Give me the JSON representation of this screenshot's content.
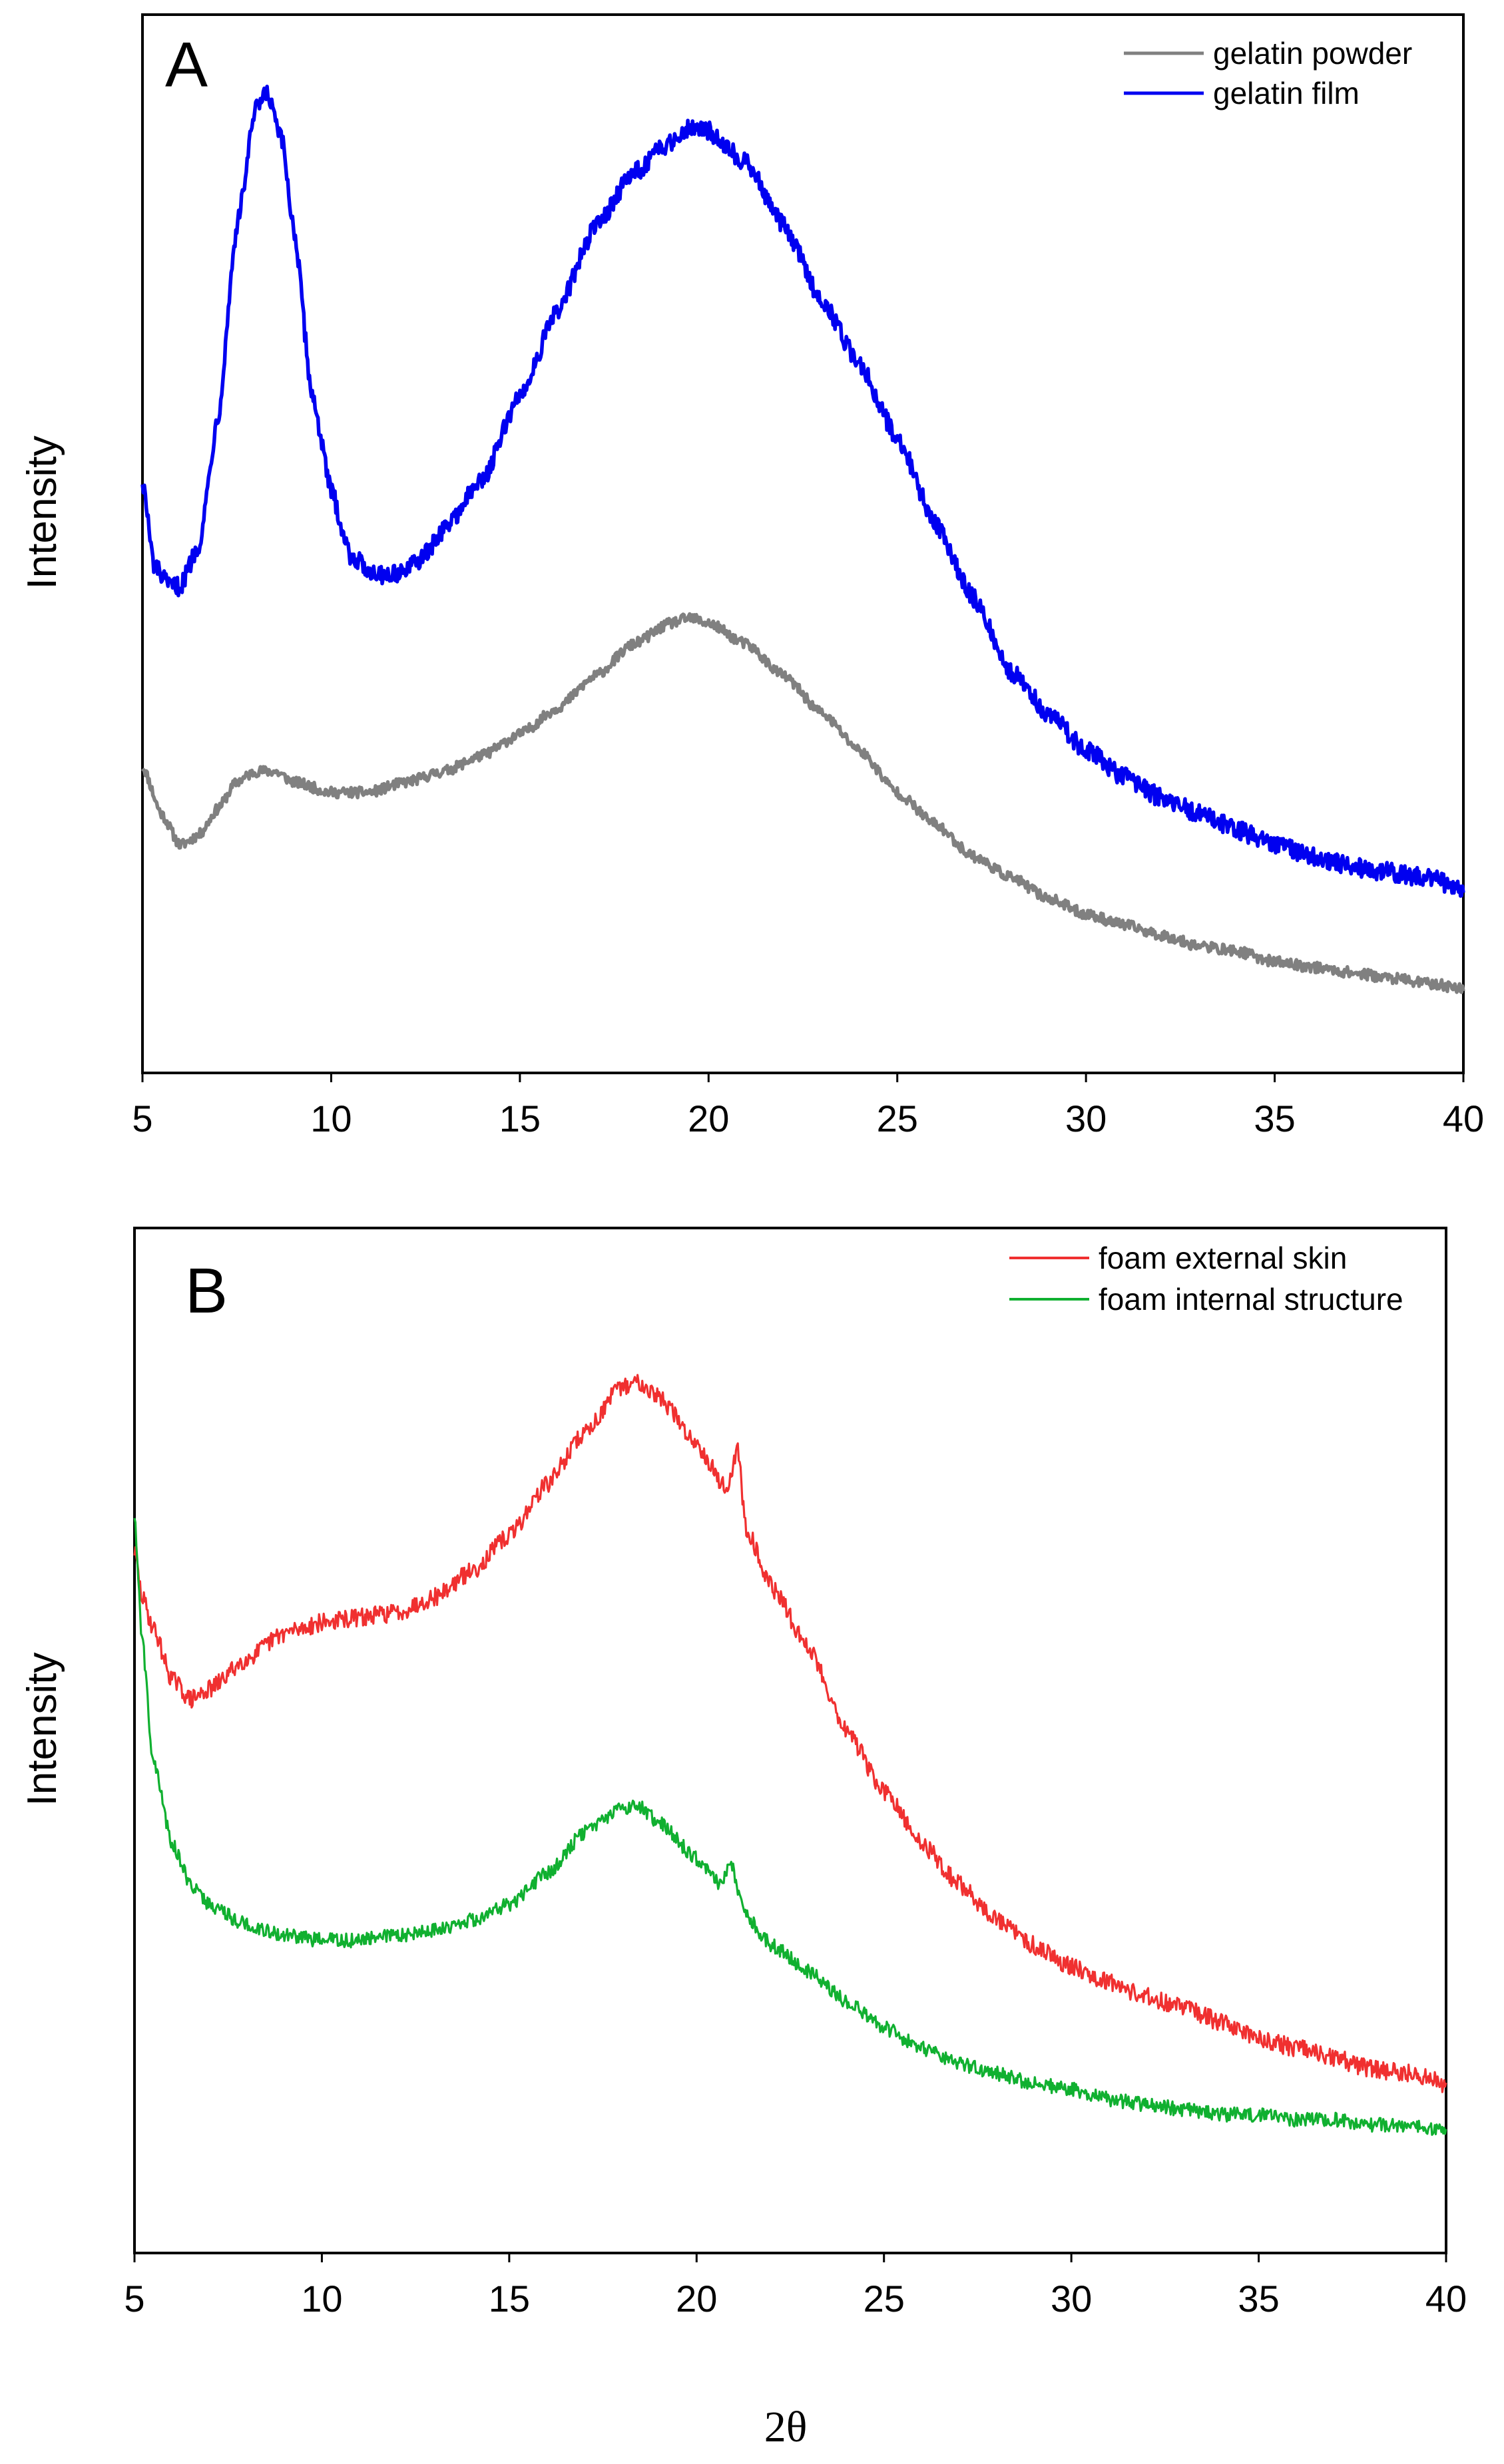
{
  "colors": {
    "gelatin_powder": "#808080",
    "gelatin_film": "#0000f0",
    "foam_external_skin": "#f03030",
    "foam_internal_structure": "#10b030"
  },
  "chart_data": [
    {
      "type": "line",
      "panel_label": "A",
      "ylabel": "Intensity",
      "xlabel": "",
      "xlim": [
        5,
        40
      ],
      "ylim": [
        0,
        100
      ],
      "x_ticks": [
        5,
        10,
        15,
        20,
        25,
        30,
        35,
        40
      ],
      "y_ticks_shown": false,
      "legend_position": "top-right",
      "series": [
        {
          "name": "gelatin powder",
          "color_key": "gelatin_powder",
          "noise": 0.5,
          "points": [
            [
              5,
              29
            ],
            [
              5.5,
              24.5
            ],
            [
              6,
              21.5
            ],
            [
              6.5,
              22.5
            ],
            [
              7,
              25
            ],
            [
              7.5,
              27.5
            ],
            [
              8,
              28.5
            ],
            [
              8.5,
              28.5
            ],
            [
              9,
              27.5
            ],
            [
              10,
              26.5
            ],
            [
              11,
              26.5
            ],
            [
              12,
              27.5
            ],
            [
              13,
              28.5
            ],
            [
              14,
              30
            ],
            [
              15,
              32
            ],
            [
              16,
              34.5
            ],
            [
              17,
              37.5
            ],
            [
              18,
              40.5
            ],
            [
              19,
              42.5
            ],
            [
              19.5,
              43
            ],
            [
              20,
              42.5
            ],
            [
              21,
              40.5
            ],
            [
              22,
              37.5
            ],
            [
              23,
              34
            ],
            [
              24,
              30.5
            ],
            [
              25,
              26.5
            ],
            [
              26,
              23.5
            ],
            [
              27,
              20.5
            ],
            [
              28,
              18.5
            ],
            [
              29,
              16.5
            ],
            [
              30,
              15
            ],
            [
              31,
              14
            ],
            [
              32,
              13
            ],
            [
              33,
              12
            ],
            [
              34,
              11.5
            ],
            [
              35,
              10.5
            ],
            [
              36,
              10
            ],
            [
              37,
              9.5
            ],
            [
              38,
              9
            ],
            [
              39,
              8.5
            ],
            [
              40,
              8
            ]
          ]
        },
        {
          "name": "gelatin film",
          "color_key": "gelatin_film",
          "noise": 0.9,
          "points": [
            [
              5,
              56
            ],
            [
              5.3,
              48
            ],
            [
              5.7,
              46
            ],
            [
              6,
              46
            ],
            [
              6.5,
              50
            ],
            [
              7,
              62
            ],
            [
              7.5,
              80
            ],
            [
              8,
              91
            ],
            [
              8.3,
              92.5
            ],
            [
              8.7,
              88
            ],
            [
              9,
              80
            ],
            [
              9.5,
              64
            ],
            [
              10,
              55
            ],
            [
              10.5,
              49
            ],
            [
              11,
              47.5
            ],
            [
              11.5,
              47
            ],
            [
              12,
              47.5
            ],
            [
              12.5,
              49
            ],
            [
              13,
              51.5
            ],
            [
              14,
              56
            ],
            [
              15,
              64
            ],
            [
              16,
              72
            ],
            [
              17,
              80
            ],
            [
              18,
              85
            ],
            [
              19,
              88
            ],
            [
              19.5,
              89.5
            ],
            [
              20,
              89
            ],
            [
              21,
              86
            ],
            [
              22,
              80
            ],
            [
              23,
              73
            ],
            [
              24,
              67
            ],
            [
              25,
              60
            ],
            [
              26,
              52
            ],
            [
              27,
              45
            ],
            [
              28,
              38
            ],
            [
              29,
              34
            ],
            [
              30,
              30.5
            ],
            [
              31,
              28
            ],
            [
              32,
              26
            ],
            [
              33,
              24.5
            ],
            [
              34,
              23
            ],
            [
              35,
              21.5
            ],
            [
              36,
              20.5
            ],
            [
              37,
              19.5
            ],
            [
              38,
              19
            ],
            [
              39,
              18.5
            ],
            [
              40,
              17.5
            ]
          ]
        }
      ]
    },
    {
      "type": "line",
      "panel_label": "B",
      "ylabel": "Intensity",
      "xlabel": "2θ",
      "xlim": [
        5,
        40
      ],
      "ylim": [
        0,
        100
      ],
      "x_ticks": [
        5,
        10,
        15,
        20,
        25,
        30,
        35,
        40
      ],
      "y_ticks_shown": false,
      "legend_position": "top-right",
      "series": [
        {
          "name": "foam external skin",
          "color_key": "foam_external_skin",
          "noise": 0.9,
          "points": [
            [
              5,
              68.5
            ],
            [
              5.2,
              64
            ],
            [
              5.5,
              61
            ],
            [
              6,
              56
            ],
            [
              6.5,
              54
            ],
            [
              7,
              55
            ],
            [
              8,
              58
            ],
            [
              9,
              60.5
            ],
            [
              10,
              61.5
            ],
            [
              11,
              62
            ],
            [
              12,
              62.5
            ],
            [
              13,
              64
            ],
            [
              14,
              66.5
            ],
            [
              15,
              70
            ],
            [
              16,
              75
            ],
            [
              17,
              80
            ],
            [
              18,
              84.5
            ],
            [
              18.5,
              85
            ],
            [
              19,
              83.5
            ],
            [
              20,
              79
            ],
            [
              20.8,
              74.5
            ],
            [
              21.1,
              78.5
            ],
            [
              21.3,
              71
            ],
            [
              22,
              65
            ],
            [
              23,
              59
            ],
            [
              24,
              51
            ],
            [
              25,
              45
            ],
            [
              26,
              40
            ],
            [
              27,
              36
            ],
            [
              28,
              32.5
            ],
            [
              29,
              30
            ],
            [
              30,
              28
            ],
            [
              31,
              26.5
            ],
            [
              32,
              25
            ],
            [
              33,
              24
            ],
            [
              34,
              22.5
            ],
            [
              35,
              21
            ],
            [
              36,
              20
            ],
            [
              37,
              19
            ],
            [
              38,
              18
            ],
            [
              39,
              17.5
            ],
            [
              40,
              16.5
            ]
          ]
        },
        {
          "name": "foam internal structure",
          "color_key": "foam_internal_structure",
          "noise": 0.7,
          "points": [
            [
              5,
              72
            ],
            [
              5.2,
              60
            ],
            [
              5.5,
              48
            ],
            [
              6,
              40
            ],
            [
              6.5,
              36
            ],
            [
              7,
              34
            ],
            [
              8,
              32
            ],
            [
              9,
              31
            ],
            [
              10,
              30.5
            ],
            [
              11,
              30.5
            ],
            [
              12,
              31
            ],
            [
              13,
              31.5
            ],
            [
              14,
              32.5
            ],
            [
              15,
              34
            ],
            [
              16,
              37
            ],
            [
              17,
              41
            ],
            [
              18,
              43.5
            ],
            [
              18.5,
              43.5
            ],
            [
              19,
              42
            ],
            [
              20,
              38.5
            ],
            [
              20.6,
              36
            ],
            [
              20.9,
              38
            ],
            [
              21.3,
              33
            ],
            [
              22,
              30
            ],
            [
              23,
              27.5
            ],
            [
              24,
              24.5
            ],
            [
              25,
              22
            ],
            [
              26,
              20
            ],
            [
              27,
              18.5
            ],
            [
              28,
              17.5
            ],
            [
              29,
              16.5
            ],
            [
              30,
              16
            ],
            [
              31,
              15
            ],
            [
              32,
              14.5
            ],
            [
              33,
              14
            ],
            [
              34,
              13.5
            ],
            [
              35,
              13.5
            ],
            [
              36,
              13
            ],
            [
              37,
              13
            ],
            [
              38,
              12.5
            ],
            [
              39,
              12.5
            ],
            [
              40,
              12
            ]
          ]
        }
      ]
    }
  ]
}
